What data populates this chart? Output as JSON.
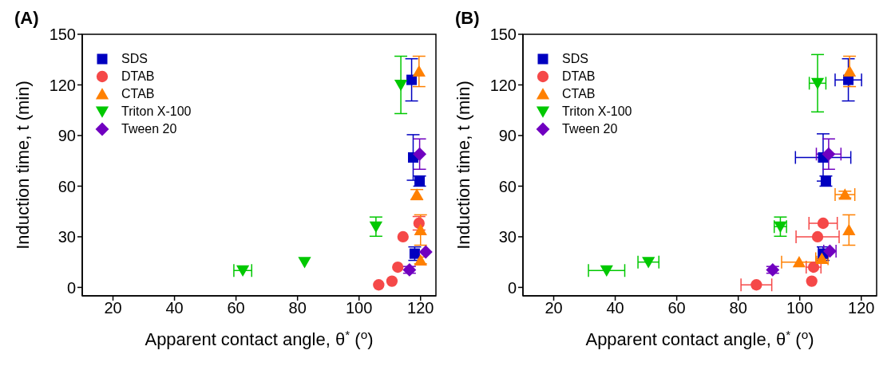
{
  "chart_data": [
    {
      "type": "scatter",
      "title": "(A)",
      "xlabel": "Apparent contact angle, θ$^{*}$ ($^{o}$)",
      "ylabel": "Induction time, t (min)",
      "xlim": [
        10,
        125
      ],
      "ylim": [
        -5,
        150
      ],
      "xticks": [
        20,
        40,
        60,
        80,
        100,
        120
      ],
      "yticks": [
        0,
        30,
        60,
        90,
        120,
        150
      ],
      "legend": "top left",
      "series": [
        {
          "name": "SDS",
          "color": "#0000c0",
          "marker": "square",
          "x": [
            117.1,
            117.6,
            119.7,
            118.1
          ],
          "values": [
            123,
            77,
            63,
            20
          ],
          "errors": [
            12.5,
            13.5,
            3,
            4
          ],
          "xerrors": [
            null,
            null,
            null,
            null
          ]
        },
        {
          "name": "DTAB",
          "color": "#f54848",
          "marker": "circle",
          "x": [
            106.4,
            110.7,
            112.6,
            114.3,
            119.5
          ],
          "values": [
            1.5,
            3.7,
            12,
            30,
            38
          ],
          "errors": [
            null,
            null,
            null,
            null,
            4
          ],
          "xerrors": [
            null,
            null,
            null,
            null,
            null
          ]
        },
        {
          "name": "CTAB",
          "color": "#ff8000",
          "marker": "triangle",
          "x": [
            119.5,
            118.8,
            120,
            120
          ],
          "values": [
            128,
            55,
            34,
            16
          ],
          "errors": [
            9,
            3,
            9,
            2
          ],
          "xerrors": [
            null,
            null,
            null,
            null
          ]
        },
        {
          "name": "Triton X-100",
          "color": "#00c800",
          "marker": "triangle-down",
          "x": [
            62.2,
            82.3,
            105.5,
            113.6
          ],
          "values": [
            10,
            15,
            36,
            120
          ],
          "errors": [
            null,
            null,
            5.7,
            17
          ],
          "xerrors": [
            2.9,
            null,
            null,
            null
          ]
        },
        {
          "name": "Tween 20",
          "color": "#7000c0",
          "marker": "diamond",
          "x": [
            116.4,
            119.7,
            121.7
          ],
          "values": [
            10.4,
            79,
            21
          ],
          "errors": [
            2,
            9,
            null
          ],
          "xerrors": [
            null,
            null,
            null
          ]
        }
      ]
    },
    {
      "type": "scatter",
      "title": "(B)",
      "xlabel": "Apparent contact angle, θ$^{*}$ ($^{o}$)",
      "ylabel": "Induction time, t (min)",
      "xlim": [
        10,
        125
      ],
      "ylim": [
        -5,
        150
      ],
      "xticks": [
        20,
        40,
        60,
        80,
        100,
        120
      ],
      "yticks": [
        0,
        30,
        60,
        90,
        120,
        150
      ],
      "legend": "top left",
      "series": [
        {
          "name": "SDS",
          "color": "#0000c0",
          "marker": "square",
          "x": [
            115.8,
            107.6,
            108.5,
            107.6
          ],
          "values": [
            123,
            77,
            63,
            20
          ],
          "errors": [
            12.5,
            14,
            3,
            4
          ],
          "xerrors": [
            4.3,
            9,
            null,
            1.5
          ]
        },
        {
          "name": "DTAB",
          "color": "#f54848",
          "marker": "circle",
          "x": [
            85.9,
            103.9,
            104.5,
            105.8,
            107.6
          ],
          "values": [
            1.5,
            3.7,
            12,
            30,
            38
          ],
          "errors": [
            null,
            null,
            null,
            null,
            null
          ],
          "xerrors": [
            5,
            null,
            2.4,
            7,
            4.6
          ]
        },
        {
          "name": "CTAB",
          "color": "#ff8000",
          "marker": "triangle",
          "x": [
            116.2,
            114.7,
            116,
            99.8,
            107.2
          ],
          "values": [
            128,
            55,
            34,
            15,
            17
          ],
          "errors": [
            9,
            2,
            9,
            null,
            null
          ],
          "xerrors": [
            null,
            3.2,
            null,
            5.7,
            2
          ]
        },
        {
          "name": "Triton X-100",
          "color": "#00c800",
          "marker": "triangle-down",
          "x": [
            37.2,
            50.8,
            93.7,
            105.8
          ],
          "values": [
            10,
            15,
            36,
            121
          ],
          "errors": [
            null,
            null,
            5.7,
            17
          ],
          "xerrors": [
            5.9,
            3.4,
            2,
            2.7
          ]
        },
        {
          "name": "Tween 20",
          "color": "#7000c0",
          "marker": "diamond",
          "x": [
            91.2,
            109.4,
            109.8
          ],
          "values": [
            10.4,
            79,
            21.5
          ],
          "errors": [
            2,
            9,
            null
          ],
          "xerrors": [
            null,
            4,
            2
          ]
        }
      ]
    }
  ]
}
